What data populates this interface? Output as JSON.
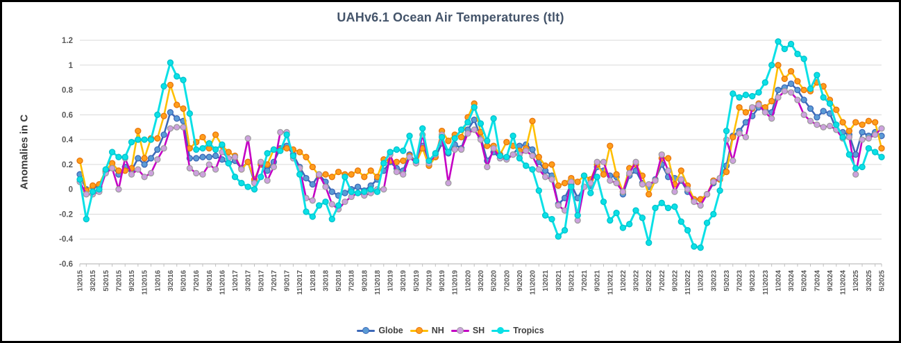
{
  "title": "UAHv6.1 Ocean Air Temperatures (tlt)",
  "y_axis_title": "Anomalies in C",
  "legend": [
    {
      "label": "Globe",
      "line_color": "#3C68B8",
      "marker_fill": "#5B9BD5",
      "marker_stroke": "#3C68B8"
    },
    {
      "label": "NH",
      "line_color": "#FFBF00",
      "marker_fill": "#FF9E1B",
      "marker_stroke": "#E8740C"
    },
    {
      "label": "SH",
      "line_color": "#C400C4",
      "marker_fill": "#CDA1DE",
      "marker_stroke": "#9E9E9E"
    },
    {
      "label": "Tropics",
      "line_color": "#0AE0E6",
      "marker_fill": "#0AE0E6",
      "marker_stroke": "#0AE0E6"
    }
  ],
  "chart_data": {
    "type": "line",
    "title": "UAHv6.1 Ocean Air Temperatures (tlt)",
    "xlabel": "",
    "ylabel": "Anomalies in C",
    "ylim": [
      -0.6,
      1.2
    ],
    "yticks": [
      "1.2",
      "1",
      "0.8",
      "0.6",
      "0.4",
      "0.2",
      "0",
      "-0.2",
      "-0.4",
      "-0.6"
    ],
    "grid": true,
    "legend_position": "bottom",
    "x_start": "1\\2015",
    "x_end": "5\\2025",
    "x_count": 125,
    "x_tick_every_months": 2,
    "x_tick_labels": [
      "1\\2015",
      "3\\2015",
      "5\\2015",
      "7\\2015",
      "9\\2015",
      "11\\2015",
      "1\\2016",
      "3\\2016",
      "5\\2016",
      "7\\2016",
      "9\\2016",
      "11\\2016",
      "1\\2017",
      "3\\2017",
      "5\\2017",
      "7\\2017",
      "9\\2017",
      "11\\2017",
      "1\\2018",
      "3\\2018",
      "5\\2018",
      "7\\2018",
      "9\\2018",
      "11\\2018",
      "1\\2019",
      "3\\2019",
      "5\\2019",
      "7\\2019",
      "9\\2019",
      "11\\2019",
      "1\\2020",
      "3\\2020",
      "5\\2020",
      "7\\2020",
      "9\\2020",
      "11\\2020",
      "1\\2021",
      "3\\2021",
      "5\\2021",
      "7\\2021",
      "9\\2021",
      "11\\2021",
      "1\\2022",
      "3\\2022",
      "5\\2022",
      "7\\2022",
      "9\\2022",
      "11\\2022",
      "1\\2023",
      "3\\2023",
      "5\\2023",
      "7\\2023",
      "9\\2023",
      "11\\2023",
      "1\\2024",
      "3\\2024",
      "5\\2024",
      "7\\2024",
      "9\\2024",
      "11\\2024",
      "1\\2025",
      "3\\2025",
      "5\\2025"
    ],
    "series": [
      {
        "name": "Globe",
        "line_color": "#3C68B8",
        "marker_fill": "#5B9BD5",
        "marker_stroke": "#3C68B8",
        "values": [
          0.12,
          0.0,
          0.02,
          0.02,
          0.14,
          0.18,
          0.12,
          0.18,
          0.15,
          0.25,
          0.2,
          0.25,
          0.32,
          0.44,
          0.62,
          0.57,
          0.55,
          0.25,
          0.25,
          0.26,
          0.26,
          0.27,
          0.24,
          0.21,
          0.23,
          0.17,
          0.22,
          0.06,
          0.21,
          0.15,
          0.22,
          0.33,
          0.35,
          0.28,
          0.18,
          0.09,
          0.04,
          0.12,
          0.06,
          -0.02,
          -0.05,
          -0.03,
          0.0,
          0.02,
          -0.01,
          0.03,
          0.08,
          0.15,
          0.22,
          0.17,
          0.15,
          0.28,
          0.22,
          0.35,
          0.23,
          0.26,
          0.37,
          0.29,
          0.36,
          0.33,
          0.48,
          0.56,
          0.42,
          0.23,
          0.3,
          0.25,
          0.25,
          0.28,
          0.35,
          0.36,
          0.32,
          0.22,
          0.15,
          0.11,
          -0.12,
          -0.07,
          0.04,
          -0.07,
          0.02,
          0.03,
          0.18,
          0.15,
          0.11,
          0.1,
          -0.04,
          0.11,
          0.15,
          0.05,
          0.02,
          0.08,
          0.2,
          0.1,
          0.09,
          0.07,
          -0.02,
          -0.08,
          -0.08,
          -0.04,
          0.05,
          0.09,
          0.19,
          0.43,
          0.47,
          0.54,
          0.59,
          0.66,
          0.64,
          0.62,
          0.8,
          0.82,
          0.85,
          0.8,
          0.72,
          0.65,
          0.58,
          0.63,
          0.61,
          0.48,
          0.46,
          0.44,
          0.28,
          0.46,
          0.43,
          0.46,
          0.43
        ]
      },
      {
        "name": "NH",
        "line_color": "#FFBF00",
        "marker_fill": "#FF9E1B",
        "marker_stroke": "#E8740C",
        "values": [
          0.23,
          -0.01,
          0.03,
          0.04,
          0.15,
          0.21,
          0.15,
          0.15,
          0.17,
          0.47,
          0.25,
          0.41,
          0.41,
          0.59,
          0.84,
          0.68,
          0.65,
          0.33,
          0.38,
          0.42,
          0.33,
          0.44,
          0.35,
          0.3,
          0.27,
          0.16,
          0.22,
          0.08,
          0.2,
          0.2,
          0.32,
          0.32,
          0.33,
          0.32,
          0.3,
          0.26,
          0.18,
          0.11,
          0.12,
          0.1,
          0.14,
          0.12,
          0.12,
          0.15,
          0.1,
          0.15,
          0.1,
          0.24,
          0.23,
          0.22,
          0.23,
          0.27,
          0.21,
          0.33,
          0.19,
          0.26,
          0.47,
          0.39,
          0.44,
          0.42,
          0.58,
          0.69,
          0.46,
          0.35,
          0.35,
          0.28,
          0.38,
          0.35,
          0.31,
          0.33,
          0.55,
          0.26,
          0.19,
          0.2,
          0.03,
          0.05,
          0.09,
          0.06,
          0.11,
          0.08,
          0.2,
          0.12,
          0.35,
          0.12,
          -0.02,
          0.17,
          0.2,
          0.11,
          -0.04,
          0.07,
          0.25,
          0.25,
          0.04,
          0.15,
          0.03,
          -0.08,
          -0.08,
          -0.04,
          0.07,
          0.08,
          0.14,
          0.42,
          0.66,
          0.62,
          0.65,
          0.69,
          0.66,
          0.71,
          1.0,
          0.89,
          0.95,
          0.87,
          0.8,
          0.79,
          0.86,
          0.83,
          0.72,
          0.64,
          0.54,
          0.47,
          0.54,
          0.52,
          0.55,
          0.54,
          0.33
        ]
      },
      {
        "name": "SH",
        "line_color": "#C400C4",
        "marker_fill": "#CDA1DE",
        "marker_stroke": "#9E9E9E",
        "values": [
          0.06,
          -0.04,
          -0.04,
          -0.02,
          0.13,
          0.17,
          0.0,
          0.25,
          0.12,
          0.16,
          0.1,
          0.13,
          0.24,
          0.33,
          0.49,
          0.5,
          0.5,
          0.17,
          0.13,
          0.12,
          0.2,
          0.16,
          0.3,
          0.25,
          0.26,
          0.16,
          0.41,
          0.05,
          0.22,
          0.07,
          0.18,
          0.46,
          0.46,
          0.25,
          0.17,
          -0.07,
          -0.09,
          0.12,
          0.02,
          -0.12,
          -0.16,
          -0.1,
          -0.06,
          -0.03,
          -0.05,
          -0.03,
          0.0,
          0.0,
          0.28,
          0.14,
          0.12,
          0.26,
          0.21,
          0.44,
          0.21,
          0.28,
          0.44,
          0.05,
          0.32,
          0.32,
          0.45,
          0.48,
          0.4,
          0.18,
          0.33,
          0.25,
          0.24,
          0.28,
          0.28,
          0.31,
          0.27,
          0.16,
          0.1,
          0.08,
          -0.13,
          -0.17,
          0.06,
          -0.25,
          0.02,
          0.05,
          0.22,
          0.22,
          0.07,
          0.05,
          -0.02,
          0.13,
          0.22,
          0.04,
          0.04,
          0.07,
          0.28,
          0.15,
          -0.02,
          0.08,
          0.0,
          -0.1,
          -0.13,
          -0.04,
          0.06,
          0.09,
          0.4,
          0.23,
          0.45,
          0.42,
          0.66,
          0.68,
          0.62,
          0.57,
          0.74,
          0.79,
          0.78,
          0.72,
          0.6,
          0.55,
          0.52,
          0.5,
          0.51,
          0.48,
          0.41,
          0.42,
          0.12,
          0.4,
          0.41,
          0.44,
          0.49
        ]
      },
      {
        "name": "Tropics",
        "line_color": "#0AE0E6",
        "marker_fill": "#0AE0E6",
        "marker_stroke": "#00C2CC",
        "values": [
          0.08,
          -0.24,
          -0.02,
          0.0,
          0.16,
          0.3,
          0.26,
          0.26,
          0.38,
          0.4,
          0.4,
          0.4,
          0.6,
          0.83,
          1.02,
          0.91,
          0.88,
          0.61,
          0.32,
          0.33,
          0.37,
          0.32,
          0.36,
          0.21,
          0.1,
          0.05,
          0.02,
          0.0,
          0.1,
          0.29,
          0.32,
          0.31,
          0.44,
          0.27,
          0.12,
          -0.18,
          -0.22,
          -0.13,
          -0.1,
          -0.24,
          -0.13,
          0.1,
          -0.02,
          -0.03,
          -0.02,
          0.0,
          -0.02,
          0.21,
          0.3,
          0.32,
          0.31,
          0.43,
          0.23,
          0.49,
          0.23,
          0.29,
          0.42,
          0.3,
          0.41,
          0.48,
          0.54,
          0.66,
          0.53,
          0.39,
          0.57,
          0.27,
          0.26,
          0.43,
          0.25,
          0.19,
          0.16,
          -0.01,
          -0.21,
          -0.24,
          -0.38,
          -0.33,
          0.02,
          -0.21,
          0.11,
          -0.03,
          0.1,
          -0.1,
          -0.25,
          -0.19,
          -0.31,
          -0.28,
          -0.17,
          -0.23,
          -0.43,
          -0.15,
          -0.11,
          -0.15,
          -0.14,
          -0.26,
          -0.33,
          -0.46,
          -0.47,
          -0.27,
          -0.2,
          -0.01,
          0.47,
          0.77,
          0.74,
          0.76,
          0.75,
          0.78,
          0.86,
          1.0,
          1.19,
          1.13,
          1.17,
          1.09,
          1.05,
          0.81,
          0.92,
          0.74,
          0.69,
          0.52,
          0.42,
          0.28,
          0.17,
          0.18,
          0.33,
          0.3,
          0.26
        ]
      }
    ],
    "colors": {
      "grid": "#D9D9D9",
      "axis": "#BFBFBF",
      "tick_label": "#595959",
      "title": "#44546A"
    }
  }
}
